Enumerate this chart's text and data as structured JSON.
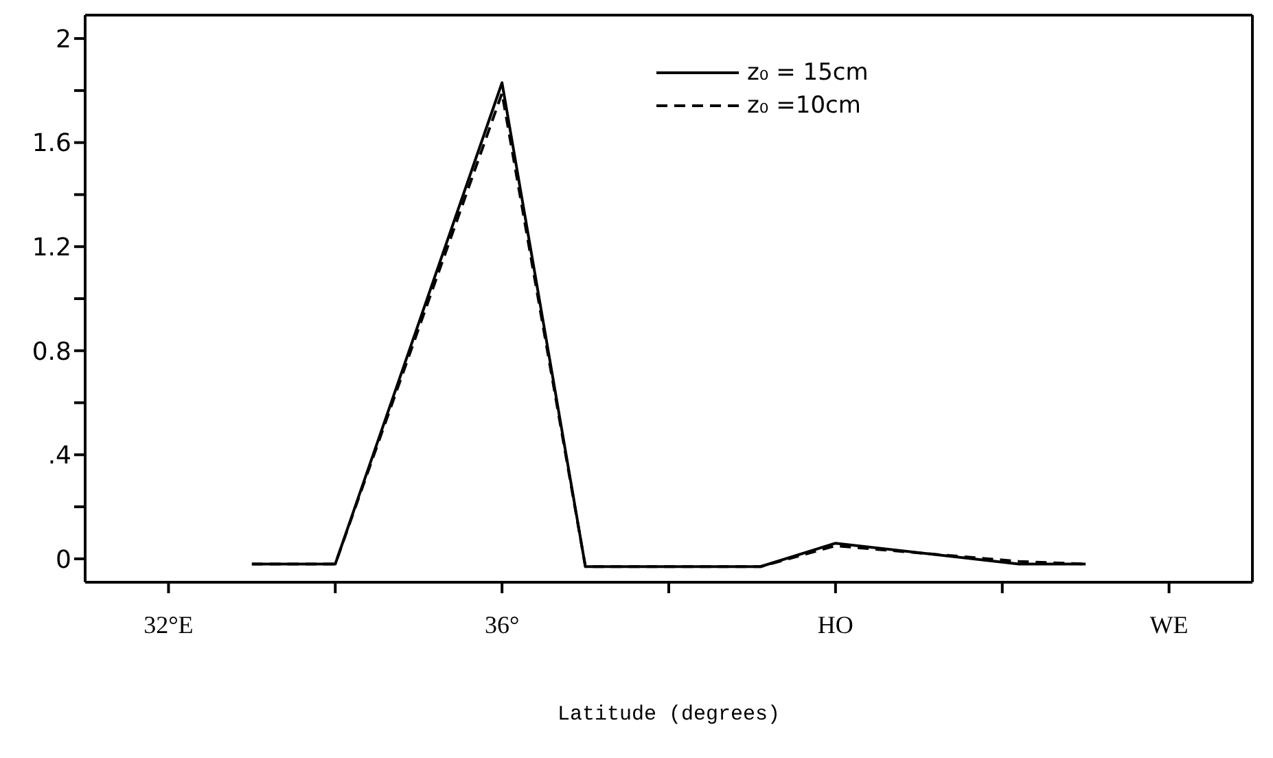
{
  "chart_data": {
    "type": "line",
    "xlabel": "Latitude (degrees)",
    "xlim": [
      31,
      45
    ],
    "xticks": [
      {
        "value": 32,
        "label": "32°E"
      },
      {
        "value": 34,
        "label": null
      },
      {
        "value": 36,
        "label": "36°"
      },
      {
        "value": 38,
        "label": null
      },
      {
        "value": 40,
        "label": "HO"
      },
      {
        "value": 42,
        "label": null
      },
      {
        "value": 44,
        "label": "WE"
      }
    ],
    "ylim": [
      -0.09,
      2.09
    ],
    "yticks": [
      0,
      {
        "value": 0.2,
        "label": null
      },
      {
        "value": 0.4,
        "label": ".4"
      },
      {
        "value": 0.6,
        "label": null
      },
      0.8,
      {
        "value": 1.0,
        "label": null
      },
      1.2,
      {
        "value": 1.4,
        "label": null
      },
      1.6,
      {
        "value": 1.8,
        "label": null
      },
      2
    ],
    "series": [
      {
        "name": "z₀ = 15cm",
        "color": "#000000",
        "line_style": "solid",
        "x": [
          33,
          34,
          36,
          37,
          39.1,
          40,
          42.2,
          43
        ],
        "values": [
          -0.02,
          -0.02,
          1.83,
          -0.03,
          -0.03,
          0.06,
          -0.02,
          -0.02
        ]
      },
      {
        "name": "z₀ =10cm",
        "color": "#000000",
        "line_style": "dashed",
        "x": [
          33,
          34,
          36,
          37,
          39.1,
          40,
          42.2,
          43
        ],
        "values": [
          -0.02,
          -0.02,
          1.79,
          -0.03,
          -0.03,
          0.05,
          -0.01,
          -0.02
        ]
      }
    ],
    "grid": false,
    "legend": "top",
    "marker": "none"
  }
}
